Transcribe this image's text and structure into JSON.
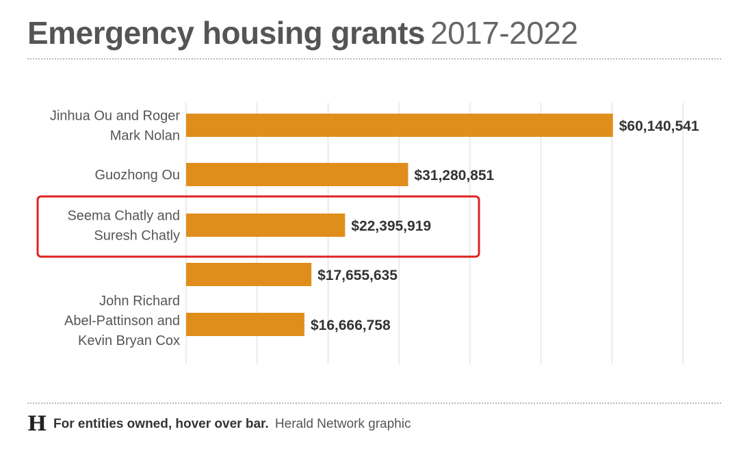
{
  "title": {
    "main": "Emergency housing grants",
    "years": "2017-2022"
  },
  "footer": {
    "logo_glyph": "H",
    "note": "For entities owned, hover over bar.",
    "credit": "Herald Network graphic"
  },
  "colors": {
    "bar": "#e08e1b",
    "highlight": "#e02020",
    "grid": "#d9d9d9",
    "label": "#555555",
    "value": "#333333"
  },
  "chart_data": {
    "type": "bar",
    "orientation": "horizontal",
    "categories": [
      [
        "Jinhua Ou and Roger",
        "Mark Nolan"
      ],
      [
        "Guozhong Ou"
      ],
      [
        "Seema Chatly and",
        "Suresh Chatly"
      ],
      [],
      [
        "John Richard",
        "Abel-Pattinson and",
        "Kevin Bryan Cox"
      ]
    ],
    "values": [
      60140541,
      31280851,
      22395919,
      17655635,
      16666758
    ],
    "value_labels": [
      "$60,140,541",
      "$31,280,851",
      "$22,395,919",
      "$17,655,635",
      "$16,666,758"
    ],
    "highlighted_index": 2,
    "xlim": [
      0,
      70000000
    ],
    "grid": true,
    "legend": "none"
  }
}
